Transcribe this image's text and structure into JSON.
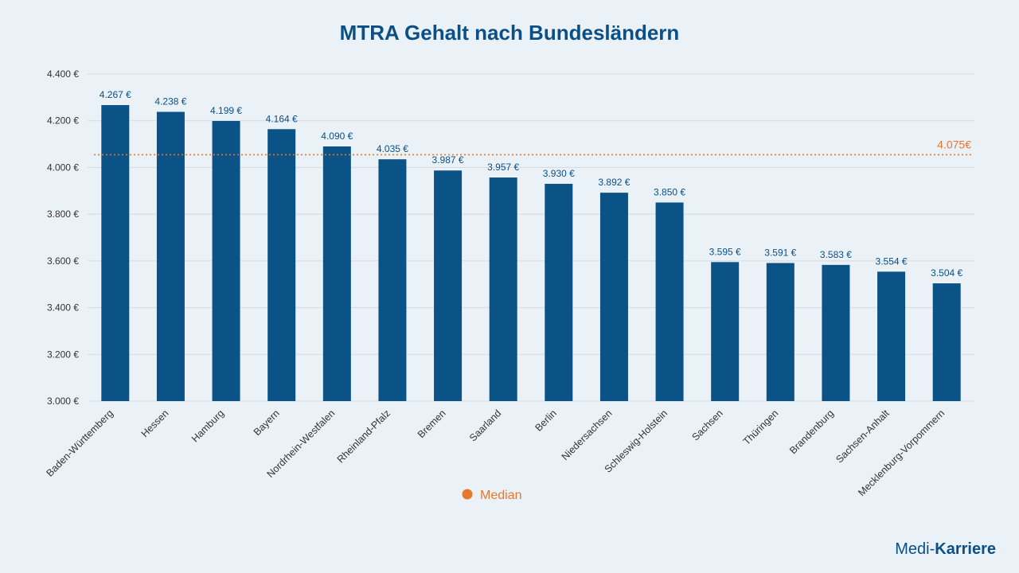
{
  "chart_data": {
    "type": "bar",
    "title": "MTRA Gehalt nach Bundesländern",
    "categories": [
      "Baden-Württemberg",
      "Hessen",
      "Hamburg",
      "Bayern",
      "Nordrhein-Westfalen",
      "Rheinland-Pfalz",
      "Bremen",
      "Saarland",
      "Berlin",
      "Niedersachsen",
      "Schleswig-Holstein",
      "Sachsen",
      "Thüringen",
      "Brandenburg",
      "Sachsen-Anhalt",
      "Mecklenburg-Vorpommern"
    ],
    "values": [
      4267,
      4238,
      4199,
      4164,
      4090,
      4035,
      3987,
      3957,
      3930,
      3892,
      3850,
      3595,
      3591,
      3583,
      3554,
      3504
    ],
    "value_labels": [
      "4.267 €",
      "4.238 €",
      "4.199 €",
      "4.164 €",
      "4.090 €",
      "4.035 €",
      "3.987 €",
      "3.957 €",
      "3.930 €",
      "3.892 €",
      "3.850 €",
      "3.595 €",
      "3.591 €",
      "3.583 €",
      "3.554 €",
      "3.504 €"
    ],
    "ylim": [
      3000,
      4400
    ],
    "yticks": [
      3000,
      3200,
      3400,
      3600,
      3800,
      4000,
      4200,
      4400
    ],
    "ytick_labels": [
      "3.000 €",
      "3.200 €",
      "3.400 €",
      "3.600 €",
      "3.800 €",
      "4.000 €",
      "4.200 €",
      "4.400 €"
    ],
    "median": {
      "name": "Median",
      "value": 4075,
      "label": "4.075€",
      "color": "#e8772e"
    },
    "bar_color": "#0b5287",
    "grid": true,
    "legend_position": "bottom"
  },
  "brand": {
    "part1": "Medi-",
    "part2": "Karriere"
  }
}
